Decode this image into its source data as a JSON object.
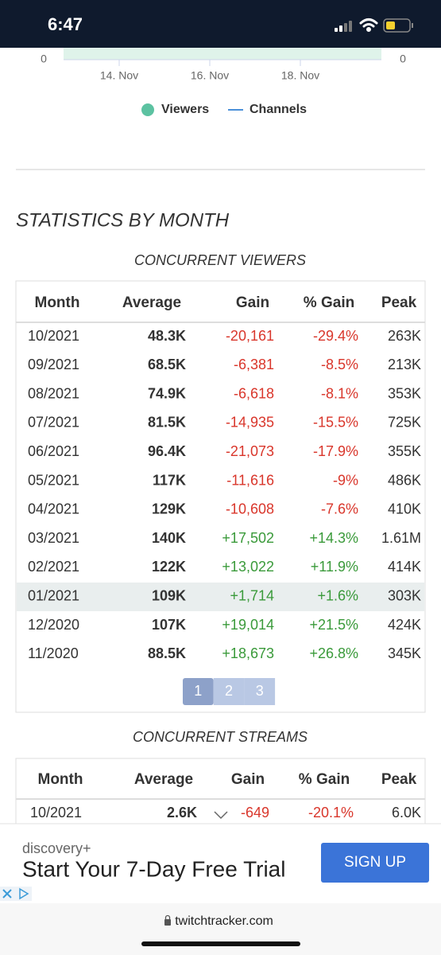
{
  "status_bar": {
    "time": "6:47"
  },
  "chart": {
    "y_left_label": "0",
    "y_right_label": "0",
    "x_labels": [
      "14. Nov",
      "16. Nov",
      "18. Nov"
    ],
    "legend": [
      {
        "label": "Viewers",
        "color": "#5cc2a1"
      },
      {
        "label": "Channels",
        "color": "#4a90d9"
      }
    ]
  },
  "section_title": "STATISTICS BY MONTH",
  "viewers_table": {
    "title": "CONCURRENT VIEWERS",
    "columns": [
      "Month",
      "Average",
      "Gain",
      "% Gain",
      "Peak"
    ],
    "rows": [
      [
        "10/2021",
        "48.3K",
        "-20,161",
        "-29.4%",
        "263K"
      ],
      [
        "09/2021",
        "68.5K",
        "-6,381",
        "-8.5%",
        "213K"
      ],
      [
        "08/2021",
        "74.9K",
        "-6,618",
        "-8.1%",
        "353K"
      ],
      [
        "07/2021",
        "81.5K",
        "-14,935",
        "-15.5%",
        "725K"
      ],
      [
        "06/2021",
        "96.4K",
        "-21,073",
        "-17.9%",
        "355K"
      ],
      [
        "05/2021",
        "117K",
        "-11,616",
        "-9%",
        "486K"
      ],
      [
        "04/2021",
        "129K",
        "-10,608",
        "-7.6%",
        "410K"
      ],
      [
        "03/2021",
        "140K",
        "+17,502",
        "+14.3%",
        "1.61M"
      ],
      [
        "02/2021",
        "122K",
        "+13,022",
        "+11.9%",
        "414K"
      ],
      [
        "01/2021",
        "109K",
        "+1,714",
        "+1.6%",
        "303K"
      ],
      [
        "12/2020",
        "107K",
        "+19,014",
        "+21.5%",
        "424K"
      ],
      [
        "11/2020",
        "88.5K",
        "+18,673",
        "+26.8%",
        "345K"
      ]
    ],
    "pages": [
      "1",
      "2",
      "3"
    ]
  },
  "streams_table": {
    "title": "CONCURRENT STREAMS",
    "columns": [
      "Month",
      "Average",
      "Gain",
      "% Gain",
      "Peak"
    ],
    "rows": [
      [
        "10/2021",
        "2.6K",
        "-649",
        "-20.1%",
        "6.0K"
      ]
    ]
  },
  "ad": {
    "brand": "discovery+",
    "headline": "Start Your 7-Day Free Trial",
    "button": "SIGN UP"
  },
  "browser": {
    "url": "twitchtracker.com"
  }
}
